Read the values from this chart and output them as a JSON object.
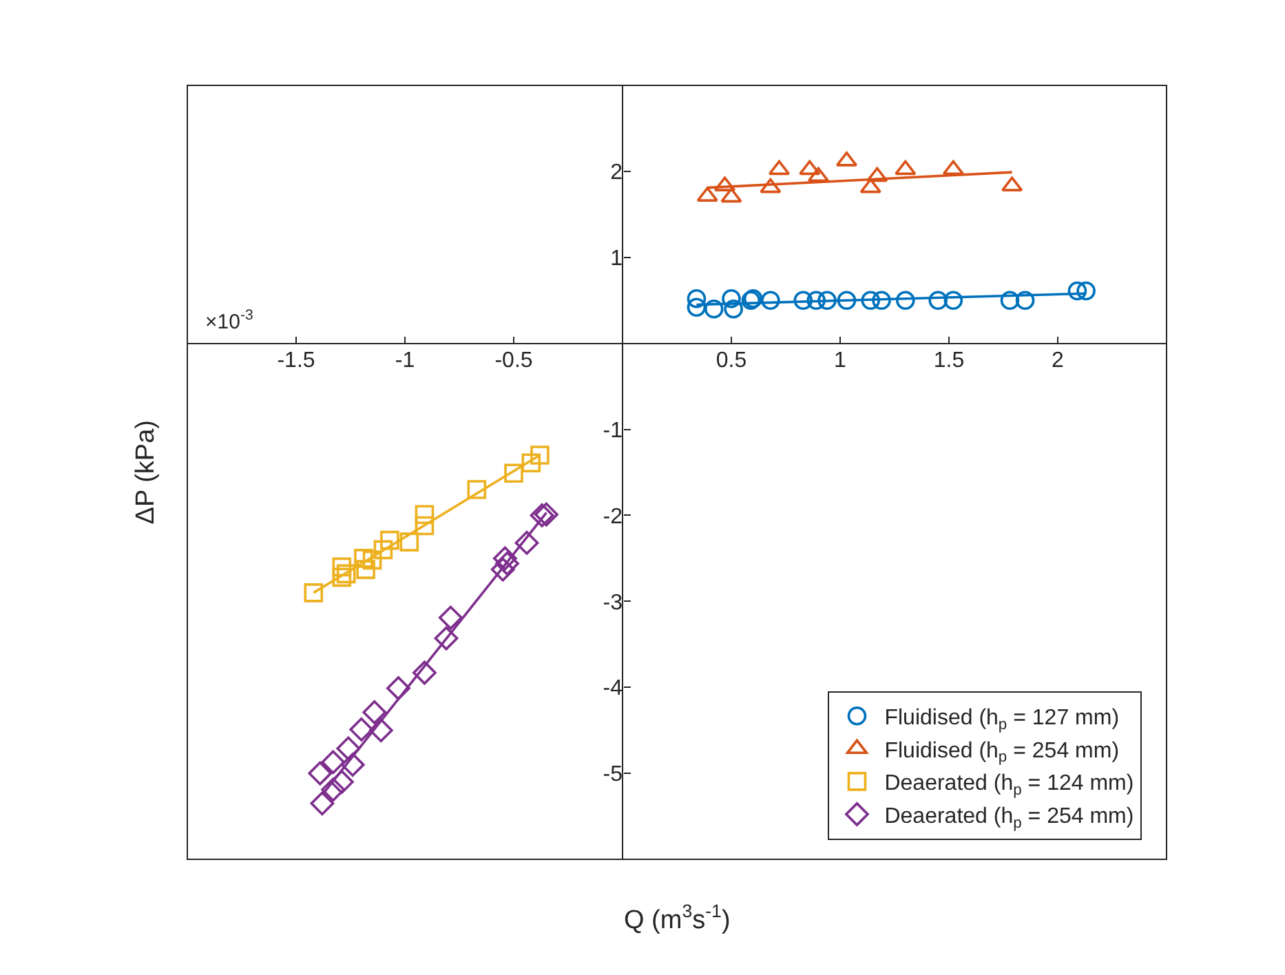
{
  "chart_data": {
    "type": "scatter",
    "xlabel": "Q (m$^{3}$s$^{-1}$)",
    "ylabel": "ΔP (kPa)",
    "annotations": [
      "×10$^{-3}$"
    ],
    "xlim": [
      -2,
      2.5
    ],
    "ylim": [
      -6,
      3
    ],
    "xticks": [
      -1.5,
      -1,
      -0.5,
      0.5,
      1,
      1.5,
      2
    ],
    "yticks": [
      -5,
      -4,
      -3,
      -2,
      -1,
      1,
      2
    ],
    "legend": "bottom right",
    "series": [
      {
        "name": "Fluidised (h$_{p}$ = 127 mm)",
        "color": "#0072bd",
        "marker": "circle",
        "x": [
          0.34,
          0.34,
          0.42,
          0.5,
          0.51,
          0.59,
          0.6,
          0.68,
          0.83,
          0.89,
          0.94,
          1.03,
          1.14,
          1.19,
          1.3,
          1.45,
          1.52,
          1.78,
          1.85,
          2.09,
          2.13
        ],
        "values": [
          0.52,
          0.42,
          0.4,
          0.52,
          0.4,
          0.5,
          0.52,
          0.5,
          0.5,
          0.5,
          0.5,
          0.5,
          0.5,
          0.5,
          0.5,
          0.5,
          0.5,
          0.5,
          0.5,
          0.61,
          0.61
        ]
      },
      {
        "name": "Fluidised (h$_{p}$ = 254 mm)",
        "color": "#d95319",
        "marker": "triangle",
        "x": [
          0.39,
          0.47,
          0.5,
          0.68,
          0.72,
          0.86,
          0.9,
          1.03,
          1.14,
          1.17,
          1.3,
          1.52,
          1.79
        ],
        "values": [
          1.71,
          1.83,
          1.7,
          1.81,
          2.02,
          2.02,
          1.94,
          2.12,
          1.81,
          1.94,
          2.02,
          2.02,
          1.83
        ]
      },
      {
        "name": "Deaerated (h$_{p}$ = 124 mm)",
        "color": "#edb120",
        "marker": "square",
        "x": [
          -1.42,
          -1.29,
          -1.29,
          -1.27,
          -1.19,
          -1.18,
          -1.15,
          -1.1,
          -1.07,
          -0.98,
          -0.91,
          -0.91,
          -0.67,
          -0.5,
          -0.42,
          -0.38
        ],
        "values": [
          -2.9,
          -2.6,
          -2.72,
          -2.68,
          -2.5,
          -2.63,
          -2.52,
          -2.4,
          -2.29,
          -2.31,
          -1.99,
          -2.12,
          -1.7,
          -1.51,
          -1.39,
          -1.3
        ]
      },
      {
        "name": "Deaerated (h$_{p}$ = 254 mm)",
        "color": "#7e2f8e",
        "marker": "diamond",
        "x": [
          -1.39,
          -1.38,
          -1.33,
          -1.33,
          -1.29,
          -1.26,
          -1.24,
          -1.2,
          -1.14,
          -1.11,
          -1.03,
          -0.91,
          -0.81,
          -0.79,
          -0.55,
          -0.54,
          -0.53,
          -0.44,
          -0.37,
          -0.35
        ],
        "values": [
          -5.0,
          -5.35,
          -4.87,
          -5.19,
          -5.1,
          -4.71,
          -4.9,
          -4.49,
          -4.29,
          -4.5,
          -4.01,
          -3.83,
          -3.43,
          -3.19,
          -2.63,
          -2.5,
          -2.56,
          -2.32,
          -2.0,
          -1.99
        ]
      },
      {
        "type": "line",
        "color": "#0072bd",
        "marker": "none",
        "x": [
          0.34,
          2.13
        ],
        "values": [
          0.45,
          0.58
        ]
      },
      {
        "type": "line",
        "color": "#d95319",
        "marker": "none",
        "x": [
          0.39,
          1.79
        ],
        "values": [
          1.81,
          1.99
        ]
      },
      {
        "type": "line",
        "color": "#edb120",
        "marker": "none",
        "x": [
          -1.42,
          -0.38
        ],
        "values": [
          -2.9,
          -1.3
        ]
      },
      {
        "type": "line",
        "color": "#7e2f8e",
        "marker": "none",
        "x": [
          -1.38,
          -0.35
        ],
        "values": [
          -5.25,
          -1.97
        ]
      }
    ]
  }
}
